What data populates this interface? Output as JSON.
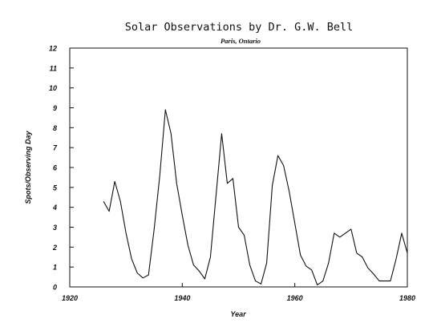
{
  "chart_data": {
    "type": "line",
    "title": "Solar Observations by Dr. G.W. Bell",
    "subtitle": "Paris, Ontario",
    "xlabel": "Year",
    "ylabel": "Spots/Observing Day",
    "xlim": [
      1920,
      1980
    ],
    "ylim": [
      0,
      12
    ],
    "x_ticks": [
      1920,
      1940,
      1960,
      1980
    ],
    "x_tick_labels": [
      "1920",
      "1940",
      "1960",
      "1980"
    ],
    "y_ticks": [
      0,
      1,
      2,
      3,
      4,
      5,
      6,
      7,
      8,
      9,
      10,
      11,
      12
    ],
    "y_tick_labels": [
      "0",
      "1",
      "2",
      "3",
      "4",
      "5",
      "6",
      "7",
      "8",
      "9",
      "10",
      "11",
      "12"
    ],
    "grid": false,
    "legend": "none",
    "series": [
      {
        "color": "#111111",
        "x": [
          1926,
          1927,
          1928,
          1929,
          1930,
          1931,
          1932,
          1933,
          1934,
          1935,
          1936,
          1937,
          1938,
          1939,
          1940,
          1941,
          1942,
          1943,
          1944,
          1945,
          1946,
          1947,
          1948,
          1949,
          1950,
          1951,
          1952,
          1953,
          1954,
          1955,
          1956,
          1957,
          1958,
          1959,
          1960,
          1961,
          1962,
          1963,
          1964,
          1965,
          1966,
          1967,
          1968,
          1969,
          1970,
          1971,
          1972,
          1973,
          1974,
          1975,
          1976,
          1977,
          1978,
          1979,
          1980
        ],
        "y": [
          4.3,
          3.8,
          5.3,
          4.3,
          2.7,
          1.4,
          0.7,
          0.45,
          0.6,
          2.9,
          5.6,
          8.9,
          7.7,
          5.2,
          3.6,
          2.1,
          1.1,
          0.8,
          0.4,
          1.5,
          4.6,
          7.7,
          5.2,
          5.45,
          3.0,
          2.6,
          1.1,
          0.3,
          0.15,
          1.2,
          5.1,
          6.6,
          6.1,
          4.8,
          3.2,
          1.6,
          1.05,
          0.85,
          0.1,
          0.3,
          1.2,
          2.7,
          2.5,
          2.7,
          2.9,
          1.7,
          1.5,
          0.95,
          0.65,
          0.3,
          0.3,
          0.3,
          1.4,
          2.7,
          1.7
        ]
      }
    ]
  }
}
